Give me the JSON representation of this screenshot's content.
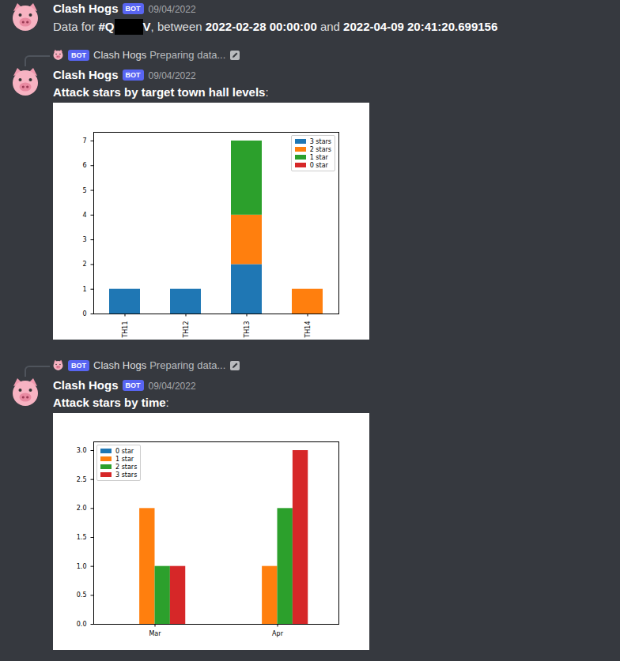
{
  "messages": [
    {
      "author": "Clash Hogs",
      "badge": "BOT",
      "date": "09/04/2022",
      "content": [
        {
          "text": "Data for "
        },
        {
          "bold": "#Q"
        },
        {
          "redacted": true
        },
        {
          "bold": "V"
        },
        {
          "text": ", between "
        },
        {
          "bold": "2022-02-28 00:00:00"
        },
        {
          "text": " and "
        },
        {
          "bold": "2022-04-09 20:41:20.699156"
        }
      ]
    },
    {
      "reply": {
        "author": "Clash Hogs",
        "badge": "BOT",
        "text": "Preparing data..."
      },
      "author": "Clash Hogs",
      "badge": "BOT",
      "date": "09/04/2022",
      "caption": {
        "bold": "Attack stars by target town hall levels",
        "text": ":"
      }
    },
    {
      "reply": {
        "author": "Clash Hogs",
        "badge": "BOT",
        "text": "Preparing data..."
      },
      "author": "Clash Hogs",
      "badge": "BOT",
      "date": "09/04/2022",
      "caption": {
        "bold": "Attack stars by time",
        "text": ":"
      }
    }
  ],
  "chart_data": [
    {
      "type": "bar",
      "stacked": true,
      "categories": [
        "TH11",
        "TH12",
        "TH13",
        "TH14"
      ],
      "series": [
        {
          "name": "3 stars",
          "color": "#1f77b4",
          "values": [
            1,
            1,
            2,
            0
          ]
        },
        {
          "name": "2 stars",
          "color": "#ff7f0e",
          "values": [
            0,
            0,
            2,
            1
          ]
        },
        {
          "name": "1 star",
          "color": "#2ca02c",
          "values": [
            0,
            0,
            3,
            0
          ]
        },
        {
          "name": "0 star",
          "color": "#d62728",
          "values": [
            0,
            0,
            0,
            0
          ]
        }
      ],
      "ylim": [
        0,
        7.35
      ],
      "yticks": [
        0,
        1,
        2,
        3,
        4,
        5,
        6,
        7
      ],
      "legend": "upper right"
    },
    {
      "type": "bar",
      "stacked": false,
      "categories": [
        "Mar",
        "Apr"
      ],
      "series": [
        {
          "name": "0 star",
          "color": "#1f77b4",
          "values": [
            0,
            0
          ]
        },
        {
          "name": "1 star",
          "color": "#ff7f0e",
          "values": [
            2,
            1
          ]
        },
        {
          "name": "2 stars",
          "color": "#2ca02c",
          "values": [
            1,
            2
          ]
        },
        {
          "name": "3 stars",
          "color": "#d62728",
          "values": [
            1,
            3
          ]
        }
      ],
      "ylim": [
        0,
        3.15
      ],
      "yticks": [
        {
          "value": 0,
          "label": "0.0"
        },
        {
          "value": 0.5,
          "label": "0.5"
        },
        {
          "value": 1,
          "label": "1.0"
        },
        {
          "value": 1.5,
          "label": "1.5"
        },
        {
          "value": 2,
          "label": "2.0"
        },
        {
          "value": 2.5,
          "label": "2.5"
        },
        {
          "value": 3,
          "label": "3.0"
        }
      ],
      "legend": "upper left"
    }
  ]
}
